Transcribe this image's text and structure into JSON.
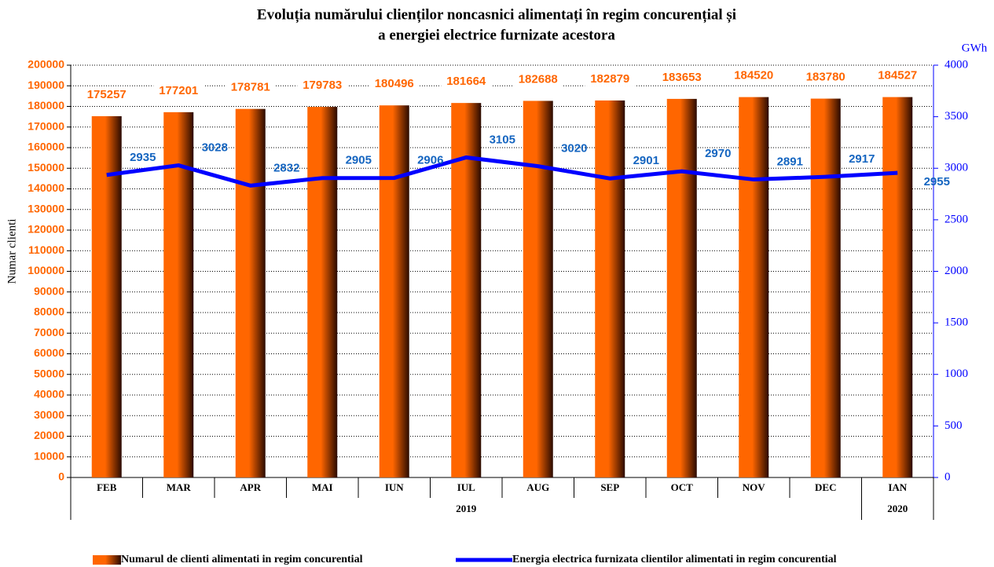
{
  "chart_data": {
    "type": "bar_line",
    "title": "Evoluția numărului clienților noncasnici alimentați în regim concurențial și",
    "subtitle": "a energiei electrice furnizate acestora",
    "y_label": "Numar clienti",
    "y2_label": "GWh",
    "categories": [
      "FEB",
      "MAR",
      "APR",
      "MAI",
      "IUN",
      "IUL",
      "AUG",
      "SEP",
      "OCT",
      "NOV",
      "DEC",
      "IAN"
    ],
    "category_groups": [
      {
        "label": "2019",
        "size": 11
      },
      {
        "label": "2020",
        "size": 1
      }
    ],
    "series": [
      {
        "name": "Numarul de clienti alimentati in regim concurential",
        "type": "bar",
        "color": "#ff6600",
        "values": [
          175257,
          177201,
          178781,
          179783,
          180496,
          181664,
          182688,
          182879,
          183653,
          184520,
          183780,
          184527
        ]
      },
      {
        "name": "Energia electrica furnizata clientilor alimentati in regim concurential",
        "type": "line",
        "color": "#0000ff",
        "axis": "y2",
        "values": [
          2935,
          3028,
          2832,
          2905,
          2906,
          3105,
          3020,
          2901,
          2970,
          2891,
          2917,
          2955
        ]
      }
    ],
    "ylim": [
      0,
      200000
    ],
    "yticks": [
      0,
      10000,
      20000,
      30000,
      40000,
      50000,
      60000,
      70000,
      80000,
      90000,
      100000,
      110000,
      120000,
      130000,
      140000,
      150000,
      160000,
      170000,
      180000,
      190000,
      200000
    ],
    "y2lim": [
      0,
      4000
    ],
    "y2ticks": [
      0,
      500,
      1000,
      1500,
      2000,
      2500,
      3000,
      3500,
      4000
    ],
    "grid": true
  }
}
